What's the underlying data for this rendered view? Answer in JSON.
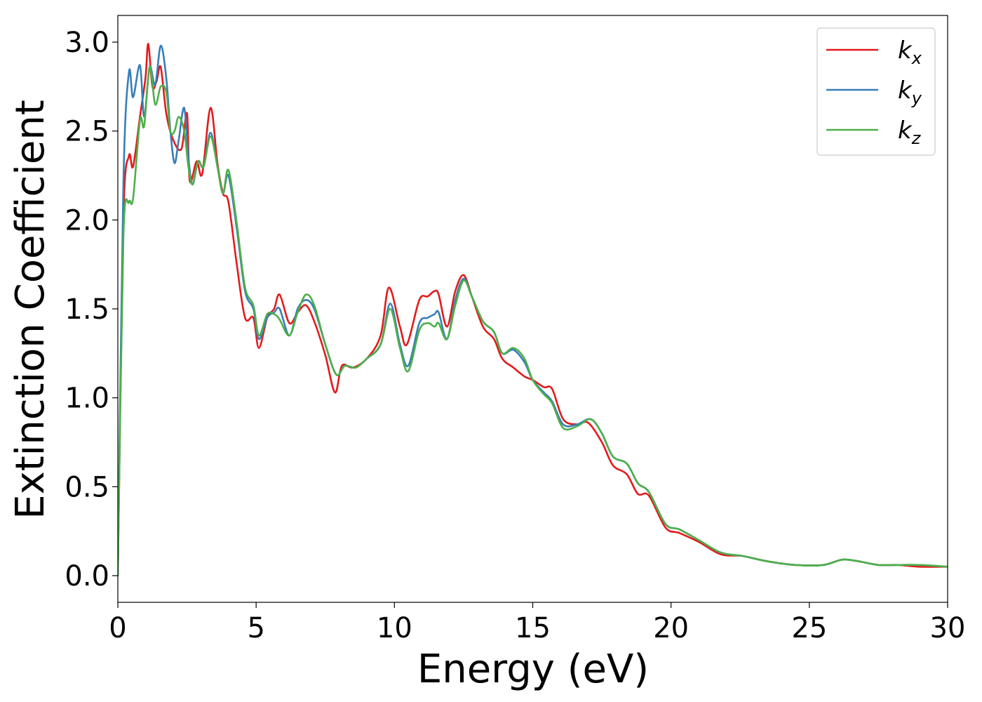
{
  "chart_data": {
    "type": "line",
    "title": "",
    "xlabel": "Energy (eV)",
    "ylabel": "Extinction Coefficient",
    "xlim": [
      0,
      30
    ],
    "ylim": [
      -0.15,
      3.15
    ],
    "xticks": [
      0,
      5,
      10,
      15,
      20,
      25,
      30
    ],
    "yticks": [
      0.0,
      0.5,
      1.0,
      1.5,
      2.0,
      2.5,
      3.0
    ],
    "xtick_labels": [
      "0",
      "5",
      "10",
      "15",
      "20",
      "25",
      "30"
    ],
    "ytick_labels": [
      "0.0",
      "0.5",
      "1.0",
      "1.5",
      "2.0",
      "2.5",
      "3.0"
    ],
    "grid": false,
    "legend": "top-right",
    "series": [
      {
        "name": "k",
        "subscript": "x",
        "color": "#e41a1c",
        "x": [
          0,
          0.2,
          0.4,
          0.55,
          0.8,
          1.0,
          1.1,
          1.25,
          1.4,
          1.55,
          1.75,
          2.0,
          2.3,
          2.5,
          2.6,
          2.85,
          3.05,
          3.35,
          3.6,
          3.8,
          4.0,
          4.3,
          4.6,
          4.9,
          5.1,
          5.4,
          5.65,
          5.85,
          6.2,
          6.5,
          6.8,
          7.1,
          7.5,
          7.85,
          8.1,
          8.5,
          9.0,
          9.5,
          9.8,
          10.2,
          10.45,
          10.9,
          11.2,
          11.45,
          11.6,
          11.9,
          12.2,
          12.5,
          12.8,
          13.2,
          13.6,
          13.9,
          14.3,
          14.7,
          15.0,
          15.4,
          15.7,
          16.1,
          16.6,
          17.0,
          17.5,
          17.9,
          18.4,
          18.8,
          19.2,
          19.8,
          20.3,
          21.0,
          21.8,
          22.6,
          23.5,
          24.5,
          25.5,
          26.2,
          26.8,
          27.5,
          28.2,
          29.0,
          30.0
        ],
        "y": [
          0.0,
          2.0,
          2.36,
          2.3,
          2.58,
          2.8,
          2.99,
          2.75,
          2.78,
          2.86,
          2.6,
          2.45,
          2.4,
          2.6,
          2.22,
          2.33,
          2.26,
          2.63,
          2.32,
          2.15,
          2.1,
          1.75,
          1.45,
          1.45,
          1.28,
          1.45,
          1.5,
          1.58,
          1.42,
          1.48,
          1.52,
          1.43,
          1.24,
          1.03,
          1.18,
          1.17,
          1.22,
          1.35,
          1.62,
          1.4,
          1.3,
          1.55,
          1.57,
          1.6,
          1.58,
          1.4,
          1.6,
          1.69,
          1.57,
          1.4,
          1.33,
          1.22,
          1.17,
          1.12,
          1.1,
          1.06,
          1.05,
          0.88,
          0.85,
          0.86,
          0.75,
          0.62,
          0.57,
          0.46,
          0.45,
          0.27,
          0.24,
          0.19,
          0.12,
          0.11,
          0.08,
          0.06,
          0.06,
          0.09,
          0.08,
          0.06,
          0.06,
          0.05,
          0.05
        ]
      },
      {
        "name": "k",
        "subscript": "y",
        "color": "#377eb8",
        "x": [
          0,
          0.2,
          0.4,
          0.55,
          0.8,
          0.95,
          1.15,
          1.35,
          1.55,
          1.75,
          1.9,
          2.05,
          2.2,
          2.4,
          2.55,
          2.7,
          2.9,
          3.1,
          3.35,
          3.6,
          3.8,
          4.0,
          4.3,
          4.6,
          4.9,
          5.1,
          5.4,
          5.65,
          5.85,
          6.2,
          6.5,
          6.8,
          7.1,
          7.5,
          7.9,
          8.2,
          8.6,
          9.0,
          9.5,
          9.85,
          10.2,
          10.5,
          10.9,
          11.2,
          11.45,
          11.6,
          11.9,
          12.2,
          12.5,
          12.8,
          13.2,
          13.6,
          13.9,
          14.3,
          14.7,
          15.0,
          15.4,
          15.7,
          16.1,
          16.6,
          17.1,
          17.5,
          17.9,
          18.4,
          18.8,
          19.2,
          19.8,
          20.3,
          21.0,
          21.8,
          22.6,
          23.5,
          24.5,
          25.5,
          26.2,
          26.8,
          27.5,
          28.2,
          29.0,
          30.0
        ],
        "y": [
          0.0,
          2.2,
          2.83,
          2.69,
          2.87,
          2.58,
          2.86,
          2.76,
          2.98,
          2.8,
          2.5,
          2.32,
          2.45,
          2.63,
          2.35,
          2.2,
          2.33,
          2.3,
          2.49,
          2.3,
          2.15,
          2.25,
          1.95,
          1.6,
          1.5,
          1.33,
          1.45,
          1.48,
          1.5,
          1.35,
          1.5,
          1.55,
          1.5,
          1.3,
          1.13,
          1.18,
          1.17,
          1.22,
          1.3,
          1.53,
          1.3,
          1.18,
          1.42,
          1.45,
          1.47,
          1.48,
          1.33,
          1.55,
          1.67,
          1.57,
          1.43,
          1.37,
          1.25,
          1.27,
          1.2,
          1.1,
          1.03,
          0.98,
          0.85,
          0.85,
          0.88,
          0.8,
          0.67,
          0.63,
          0.52,
          0.47,
          0.29,
          0.26,
          0.2,
          0.13,
          0.11,
          0.08,
          0.06,
          0.06,
          0.09,
          0.08,
          0.06,
          0.06,
          0.06,
          0.05
        ]
      },
      {
        "name": "k",
        "subscript": "z",
        "color": "#4daf4a",
        "x": [
          0,
          0.2,
          0.4,
          0.55,
          0.8,
          0.95,
          1.15,
          1.35,
          1.55,
          1.75,
          1.9,
          2.05,
          2.2,
          2.4,
          2.55,
          2.7,
          2.9,
          3.1,
          3.35,
          3.6,
          3.8,
          4.0,
          4.3,
          4.6,
          4.9,
          5.1,
          5.4,
          5.65,
          5.85,
          6.2,
          6.5,
          6.8,
          7.1,
          7.5,
          7.9,
          8.2,
          8.6,
          9.0,
          9.5,
          9.85,
          10.2,
          10.5,
          10.9,
          11.2,
          11.45,
          11.6,
          11.9,
          12.2,
          12.5,
          12.8,
          13.2,
          13.6,
          13.9,
          14.3,
          14.7,
          15.0,
          15.4,
          15.7,
          16.1,
          16.6,
          17.1,
          17.5,
          17.9,
          18.4,
          18.8,
          19.2,
          19.8,
          20.3,
          21.0,
          21.8,
          22.6,
          23.5,
          24.5,
          25.5,
          26.2,
          26.8,
          27.5,
          28.2,
          29.0,
          30.0
        ],
        "y": [
          0.0,
          1.9,
          2.1,
          2.12,
          2.56,
          2.53,
          2.86,
          2.65,
          2.75,
          2.72,
          2.5,
          2.5,
          2.58,
          2.5,
          2.3,
          2.2,
          2.33,
          2.3,
          2.47,
          2.3,
          2.15,
          2.28,
          1.98,
          1.62,
          1.52,
          1.35,
          1.47,
          1.47,
          1.44,
          1.35,
          1.48,
          1.58,
          1.52,
          1.3,
          1.13,
          1.18,
          1.17,
          1.22,
          1.3,
          1.5,
          1.28,
          1.15,
          1.38,
          1.42,
          1.4,
          1.42,
          1.33,
          1.52,
          1.66,
          1.57,
          1.43,
          1.37,
          1.25,
          1.28,
          1.22,
          1.1,
          1.02,
          0.97,
          0.83,
          0.84,
          0.88,
          0.8,
          0.67,
          0.63,
          0.52,
          0.47,
          0.29,
          0.26,
          0.2,
          0.13,
          0.11,
          0.08,
          0.06,
          0.06,
          0.09,
          0.08,
          0.06,
          0.06,
          0.06,
          0.05
        ]
      }
    ]
  }
}
